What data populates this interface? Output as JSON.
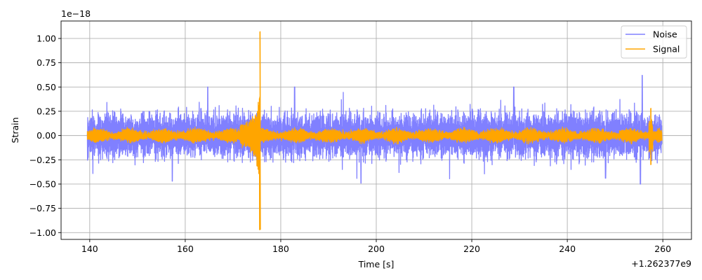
{
  "chart_data": {
    "type": "line",
    "xlabel": "Time [s]",
    "ylabel": "Strain",
    "x_offset_text": "+1.262377e9",
    "y_scale_text": "1e−18",
    "xlim": [
      134,
      266
    ],
    "ylim": [
      -1.07,
      1.18
    ],
    "x_ticks": [
      140,
      160,
      180,
      200,
      220,
      240,
      260
    ],
    "x_tick_labels": [
      "140",
      "160",
      "180",
      "200",
      "220",
      "240",
      "260"
    ],
    "y_ticks": [
      -1.0,
      -0.75,
      -0.5,
      -0.25,
      0.0,
      0.25,
      0.5,
      0.75,
      1.0
    ],
    "y_tick_labels": [
      "−1.00",
      "−0.75",
      "−0.50",
      "−0.25",
      "0.00",
      "0.25",
      "0.50",
      "0.75",
      "1.00"
    ],
    "grid": true,
    "legend_position": "top-right",
    "series": [
      {
        "name": "Noise",
        "color": "#8080ff",
        "x_range": [
          139.5,
          259.8
        ],
        "typical_amplitude": 0.3,
        "peaks": [
          {
            "x": 255.7,
            "y": 0.62
          },
          {
            "x": 164.7,
            "y": 0.5
          },
          {
            "x": 182.9,
            "y": 0.5
          },
          {
            "x": 228.8,
            "y": 0.5
          },
          {
            "x": 255.3,
            "y": -0.5
          },
          {
            "x": 157.3,
            "y": -0.47
          },
          {
            "x": 196.8,
            "y": -0.49
          },
          {
            "x": 248.0,
            "y": -0.44
          }
        ]
      },
      {
        "name": "Signal",
        "color": "#ffa500",
        "x_range": [
          139.5,
          259.8
        ],
        "typical_amplitude": 0.07,
        "peaks": [
          {
            "x": 175.7,
            "y": 1.07
          },
          {
            "x": 175.6,
            "y": -0.97
          },
          {
            "x": 257.5,
            "y": 0.28
          },
          {
            "x": 257.5,
            "y": -0.3
          }
        ]
      }
    ]
  }
}
